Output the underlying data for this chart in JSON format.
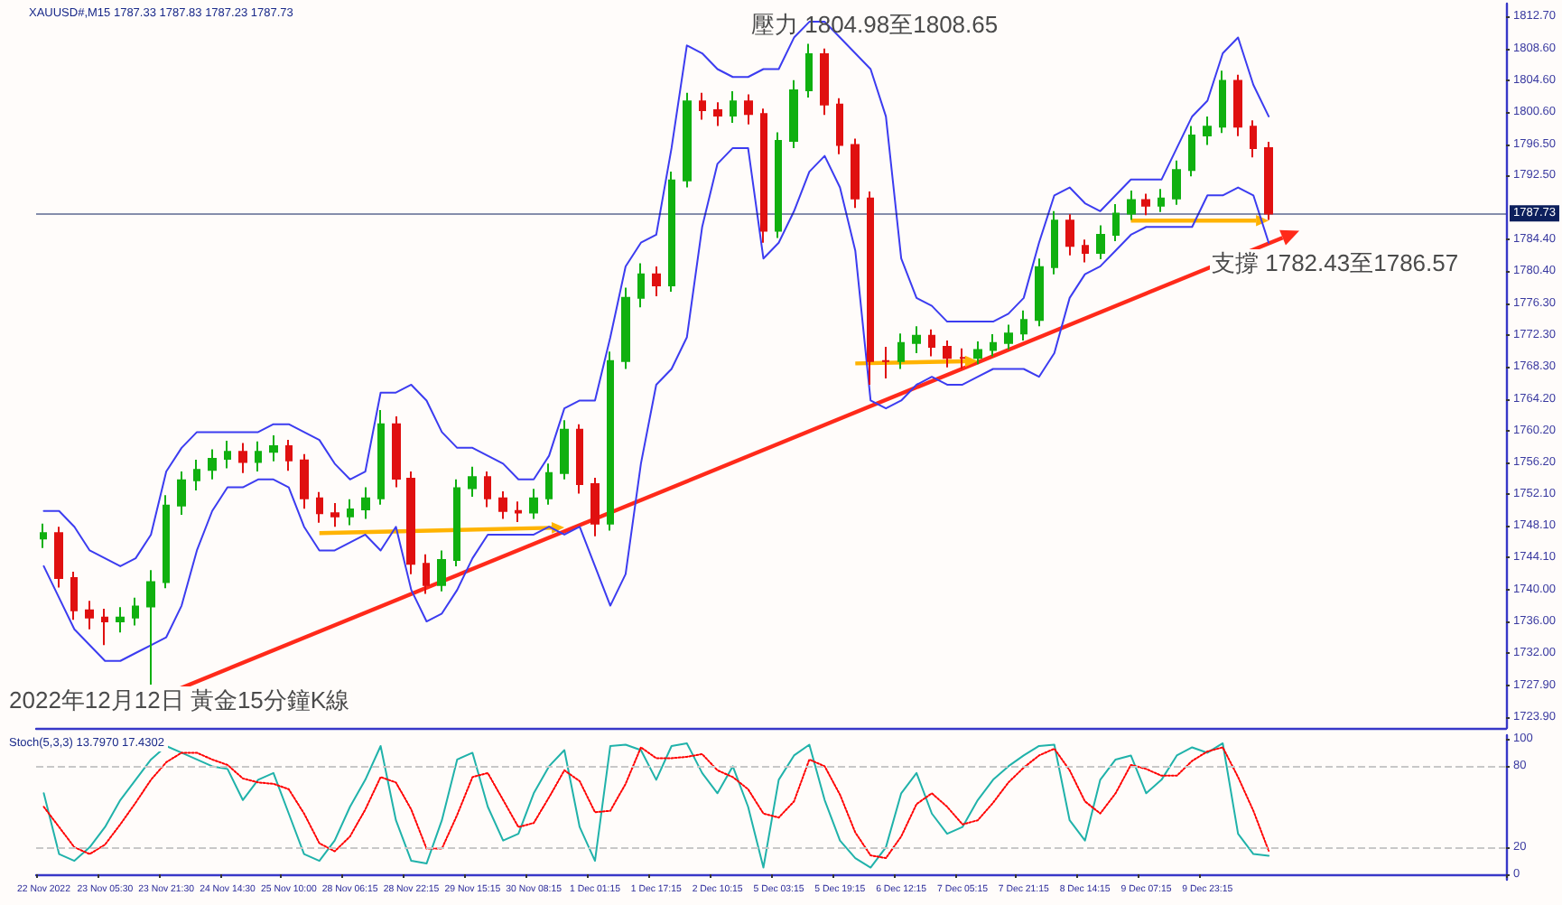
{
  "chart_data": [
    {
      "type": "candlestick",
      "title": "XAUUSD#,M15 1787.33 1787.83 1787.23 1787.73",
      "categories": [
        null,
        null,
        null,
        null,
        null,
        null,
        null,
        null,
        null,
        null,
        null,
        null,
        null,
        null,
        null,
        null,
        null,
        null,
        null,
        null,
        null,
        null,
        null,
        null,
        null,
        null,
        null,
        null,
        null,
        null,
        null,
        null,
        null,
        null,
        null,
        null,
        null,
        null,
        null,
        null,
        null,
        null,
        null,
        null,
        null,
        null,
        null,
        null,
        null,
        null,
        null,
        null,
        null,
        null,
        null,
        null,
        null,
        null,
        null,
        null,
        null,
        null,
        null,
        null,
        null,
        null,
        null,
        null,
        null,
        null,
        null,
        null,
        null,
        null,
        null,
        null,
        null,
        null,
        null,
        null,
        null,
        null,
        null,
        null,
        null,
        null,
        null,
        null,
        null,
        null,
        null,
        null,
        null,
        null,
        null,
        null
      ],
      "ohlc": [
        [
          1746.5,
          1748.4,
          1745.3,
          1747.2
        ],
        [
          1747.2,
          1748.0,
          1740.3,
          1741.5
        ],
        [
          1741.5,
          1742.3,
          1736.2,
          1737.4
        ],
        [
          1737.4,
          1738.6,
          1735.0,
          1736.5
        ],
        [
          1736.5,
          1737.6,
          1733.0,
          1736.0
        ],
        [
          1736.0,
          1737.8,
          1734.6,
          1736.5
        ],
        [
          1736.5,
          1739.0,
          1735.5,
          1737.9
        ],
        [
          1737.9,
          1742.5,
          1728.0,
          1741.0
        ],
        [
          1741.0,
          1752.0,
          1740.2,
          1750.7
        ],
        [
          1750.7,
          1755.0,
          1749.5,
          1753.9
        ],
        [
          1753.9,
          1756.5,
          1752.6,
          1755.2
        ],
        [
          1755.2,
          1757.8,
          1754.0,
          1756.6
        ],
        [
          1756.6,
          1758.9,
          1755.4,
          1757.5
        ],
        [
          1757.5,
          1758.6,
          1754.8,
          1756.2
        ],
        [
          1756.2,
          1758.8,
          1755.0,
          1757.5
        ],
        [
          1757.5,
          1759.6,
          1756.3,
          1758.2
        ],
        [
          1758.2,
          1759.0,
          1755.1,
          1756.4
        ],
        [
          1756.4,
          1757.2,
          1750.3,
          1751.6
        ],
        [
          1751.6,
          1752.4,
          1748.5,
          1749.7
        ],
        [
          1749.7,
          1751.0,
          1748.0,
          1749.3
        ],
        [
          1749.3,
          1751.5,
          1748.2,
          1750.2
        ],
        [
          1750.2,
          1753.0,
          1749.0,
          1751.6
        ],
        [
          1751.6,
          1762.8,
          1750.8,
          1761.0
        ],
        [
          1761.0,
          1762.0,
          1753.0,
          1754.1
        ],
        [
          1754.1,
          1755.0,
          1742.0,
          1743.3
        ],
        [
          1743.3,
          1744.5,
          1739.5,
          1740.6
        ],
        [
          1740.6,
          1745.0,
          1739.8,
          1743.8
        ],
        [
          1743.8,
          1754.0,
          1743.0,
          1752.9
        ],
        [
          1752.9,
          1755.6,
          1751.8,
          1754.3
        ],
        [
          1754.3,
          1755.0,
          1750.5,
          1751.6
        ],
        [
          1751.6,
          1752.5,
          1749.0,
          1750.0
        ],
        [
          1750.0,
          1751.2,
          1748.6,
          1749.8
        ],
        [
          1749.8,
          1752.8,
          1749.0,
          1751.6
        ],
        [
          1751.6,
          1756.0,
          1750.8,
          1754.8
        ],
        [
          1754.8,
          1761.5,
          1754.0,
          1760.3
        ],
        [
          1760.3,
          1761.0,
          1752.2,
          1753.4
        ],
        [
          1753.4,
          1754.2,
          1746.8,
          1748.4
        ],
        [
          1748.4,
          1770.2,
          1747.5,
          1769.0
        ],
        [
          1769.0,
          1778.3,
          1768.0,
          1777.0
        ],
        [
          1777.0,
          1781.4,
          1775.8,
          1780.0
        ],
        [
          1780.0,
          1781.0,
          1777.2,
          1778.6
        ],
        [
          1778.6,
          1793.0,
          1777.8,
          1791.9
        ],
        [
          1791.9,
          1803.0,
          1791.0,
          1801.9
        ],
        [
          1801.9,
          1803.0,
          1799.6,
          1800.8
        ],
        [
          1800.8,
          1801.8,
          1798.8,
          1800.1
        ],
        [
          1800.1,
          1803.2,
          1799.2,
          1801.9
        ],
        [
          1801.9,
          1802.8,
          1799.0,
          1800.3
        ],
        [
          1800.3,
          1801.0,
          1784.0,
          1785.5
        ],
        [
          1785.5,
          1798.0,
          1784.6,
          1796.9
        ],
        [
          1796.9,
          1804.6,
          1796.0,
          1803.3
        ],
        [
          1803.3,
          1809.2,
          1802.4,
          1807.9
        ],
        [
          1807.9,
          1808.6,
          1800.2,
          1801.5
        ],
        [
          1801.5,
          1802.3,
          1795.2,
          1796.4
        ],
        [
          1796.4,
          1797.2,
          1788.4,
          1789.6
        ],
        [
          1789.6,
          1790.5,
          1766.0,
          1769.0
        ],
        [
          1769.0,
          1770.8,
          1766.8,
          1769.0
        ],
        [
          1769.0,
          1772.5,
          1768.0,
          1771.3
        ],
        [
          1771.3,
          1773.4,
          1770.0,
          1772.2
        ],
        [
          1772.2,
          1773.0,
          1769.6,
          1770.8
        ],
        [
          1770.8,
          1771.6,
          1768.2,
          1769.4
        ],
        [
          1769.4,
          1770.6,
          1768.0,
          1769.4
        ],
        [
          1769.4,
          1771.5,
          1768.6,
          1770.4
        ],
        [
          1770.4,
          1772.4,
          1769.6,
          1771.3
        ],
        [
          1771.3,
          1773.6,
          1770.5,
          1772.5
        ],
        [
          1772.5,
          1775.4,
          1771.6,
          1774.2
        ],
        [
          1774.2,
          1782.0,
          1773.4,
          1780.9
        ],
        [
          1780.9,
          1788.0,
          1780.0,
          1786.8
        ],
        [
          1786.8,
          1787.6,
          1782.4,
          1783.6
        ],
        [
          1783.6,
          1784.4,
          1781.5,
          1782.7
        ],
        [
          1782.7,
          1786.2,
          1781.9,
          1785.0
        ],
        [
          1785.0,
          1788.9,
          1784.2,
          1787.7
        ],
        [
          1787.7,
          1790.6,
          1786.9,
          1789.4
        ],
        [
          1789.4,
          1790.2,
          1787.5,
          1788.7
        ],
        [
          1788.7,
          1790.8,
          1787.9,
          1789.6
        ],
        [
          1789.6,
          1794.4,
          1788.8,
          1793.2
        ],
        [
          1793.2,
          1798.8,
          1792.4,
          1797.6
        ],
        [
          1797.6,
          1800.0,
          1796.4,
          1798.7
        ],
        [
          1798.7,
          1805.8,
          1797.9,
          1804.5
        ],
        [
          1804.5,
          1805.3,
          1797.5,
          1798.7
        ],
        [
          1798.7,
          1799.5,
          1794.8,
          1796.0
        ],
        [
          1796.0,
          1796.8,
          1786.9,
          1787.7
        ],
        null,
        null,
        null,
        null,
        null,
        null,
        null,
        null,
        null,
        null,
        null,
        null,
        null,
        null,
        null
      ],
      "colors": [
        "#10b010",
        "#e01010",
        "#e01010",
        "#e01010",
        "#e01010",
        "#10b010",
        "#10b010",
        "#10b010",
        "#10b010",
        "#10b010",
        "#10b010",
        "#10b010",
        "#10b010",
        "#e01010",
        "#10b010",
        "#10b010",
        "#e01010",
        "#e01010",
        "#e01010",
        "#e01010",
        "#10b010",
        "#10b010",
        "#10b010",
        "#e01010",
        "#e01010",
        "#e01010",
        "#10b010",
        "#10b010",
        "#10b010",
        "#e01010",
        "#e01010",
        "#e01010",
        "#10b010",
        "#10b010",
        "#10b010",
        "#e01010",
        "#e01010",
        "#10b010",
        "#10b010",
        "#10b010",
        "#e01010",
        "#10b010",
        "#10b010",
        "#e01010",
        "#e01010",
        "#10b010",
        "#e01010",
        "#e01010",
        "#10b010",
        "#10b010",
        "#10b010",
        "#e01010",
        "#e01010",
        "#e01010",
        "#e01010",
        "#e01010",
        "#10b010",
        "#10b010",
        "#e01010",
        "#e01010",
        "#e01010",
        "#10b010",
        "#10b010",
        "#10b010",
        "#10b010",
        "#10b010",
        "#10b010",
        "#e01010",
        "#e01010",
        "#10b010",
        "#10b010",
        "#10b010",
        "#e01010",
        "#10b010",
        "#10b010",
        "#10b010",
        "#10b010",
        "#10b010",
        "#e01010",
        "#e01010",
        "#e01010",
        null,
        null,
        null,
        null,
        null,
        null,
        null,
        null,
        null,
        null,
        null,
        null,
        null,
        null,
        null
      ],
      "series": [
        {
          "type": "line",
          "color": "#3c3cf0",
          "values": [
            1750,
            1750,
            1748,
            1745,
            1744,
            1743,
            1744,
            1747,
            1755,
            1758,
            1760,
            1760,
            1760,
            1760,
            1760,
            1761,
            1761,
            1760,
            1759,
            1756,
            1754,
            1755,
            1765,
            1765,
            1766,
            1764,
            1760,
            1758,
            1758,
            1757,
            1756,
            1754,
            1754,
            1757,
            1763,
            1764,
            1764,
            1772,
            1781,
            1784,
            1785,
            1796,
            1809,
            1808,
            1806,
            1805,
            1805,
            1806,
            1806,
            1810,
            1812,
            1812,
            1810,
            1808,
            1806,
            1800,
            1782,
            1777,
            1776,
            1774,
            1774,
            1774,
            1774,
            1775,
            1777,
            1784,
            1790,
            1791,
            1789,
            1788,
            1790,
            1792,
            1792,
            1792,
            1796,
            1800,
            1802,
            1808,
            1810,
            1804,
            1800,
            null,
            null,
            null,
            null,
            null,
            null,
            null,
            null,
            null,
            null,
            null,
            null,
            null,
            null,
            null
          ]
        },
        {
          "type": "line",
          "color": "#3c3cf0",
          "values": [
            1743,
            1739,
            1735,
            1733,
            1731,
            1731,
            1732,
            1733,
            1734,
            1738,
            1745,
            1750,
            1753,
            1753,
            1754,
            1754,
            1753,
            1748,
            1745,
            1745,
            1746,
            1747,
            1745,
            1748,
            1740,
            1736,
            1737,
            1740,
            1744,
            1747,
            1747,
            1747,
            1747,
            1748,
            1747,
            1748,
            1743,
            1738,
            1742,
            1756,
            1766,
            1768,
            1772,
            1786,
            1794,
            1796,
            1796,
            1782,
            1784,
            1788,
            1793,
            1795,
            1791,
            1783,
            1764,
            1763,
            1764,
            1766,
            1767,
            1766,
            1766,
            1767,
            1768,
            1768,
            1768,
            1767,
            1770,
            1777,
            1780,
            1781,
            1783,
            1785,
            1786,
            1786,
            1786,
            1786,
            1790,
            1790,
            1791,
            1790,
            1784,
            null,
            null,
            null,
            null,
            null,
            null,
            null,
            null,
            null,
            null,
            null,
            null,
            null,
            null,
            null
          ]
        }
      ],
      "ylim": [
        1722.5,
        1814.3
      ],
      "yticks": [
        {
          "value": 1723.9,
          "label": "1723.90"
        },
        {
          "value": 1727.9,
          "label": "1727.90"
        },
        {
          "value": 1732.0,
          "label": "1732.00"
        },
        {
          "value": 1736.0,
          "label": "1736.00"
        },
        {
          "value": 1740.0,
          "label": "1740.00"
        },
        {
          "value": 1744.1,
          "label": "1744.10"
        },
        {
          "value": 1748.1,
          "label": "1748.10"
        },
        {
          "value": 1752.1,
          "label": "1752.10"
        },
        {
          "value": 1756.2,
          "label": "1756.20"
        },
        {
          "value": 1760.2,
          "label": "1760.20"
        },
        {
          "value": 1764.2,
          "label": "1764.20"
        },
        {
          "value": 1768.3,
          "label": "1768.30"
        },
        {
          "value": 1772.3,
          "label": "1772.30"
        },
        {
          "value": 1776.3,
          "label": "1776.30"
        },
        {
          "value": 1780.4,
          "label": "1780.40"
        },
        {
          "value": 1784.4,
          "label": "1784.40"
        },
        {
          "value": 1792.5,
          "label": "1792.50"
        },
        {
          "value": 1796.5,
          "label": "1796.50"
        },
        {
          "value": 1800.6,
          "label": "1800.60"
        },
        {
          "value": 1804.6,
          "label": "1804.60"
        },
        {
          "value": 1808.6,
          "label": "1808.60"
        },
        {
          "value": 1812.7,
          "label": "1812.70"
        }
      ],
      "ref_lines": [
        {
          "axis": "y",
          "value": 1787.73,
          "label": "1787.73",
          "color": "#0c1f5c"
        }
      ],
      "annotations": [
        "壓力 1804.98至1808.65",
        "支撐 1782.43至1786.57",
        "2022年12月12日 黃金15分鐘K線"
      ],
      "tick_labels": "y",
      "marker": "none"
    },
    {
      "type": "line",
      "title": "Stoch(5,3,3) 13.7970 17.4302",
      "categories": [
        "22 Nov 2022",
        null,
        null,
        null,
        "23 Nov 05:30",
        null,
        null,
        null,
        "23 Nov 21:30",
        null,
        null,
        null,
        "24 Nov 14:30",
        null,
        null,
        null,
        "25 Nov 10:00",
        null,
        null,
        null,
        "28 Nov 06:15",
        null,
        null,
        null,
        "28 Nov 22:15",
        null,
        null,
        null,
        "29 Nov 15:15",
        null,
        null,
        null,
        "30 Nov 08:15",
        null,
        null,
        null,
        "1 Dec 01:15",
        null,
        null,
        null,
        "1 Dec 17:15",
        null,
        null,
        null,
        "2 Dec 10:15",
        null,
        null,
        null,
        "5 Dec 03:15",
        null,
        null,
        null,
        "5 Dec 19:15",
        null,
        null,
        null,
        "6 Dec 12:15",
        null,
        null,
        null,
        "7 Dec 05:15",
        null,
        null,
        null,
        "7 Dec 21:15",
        null,
        null,
        null,
        "8 Dec 14:15",
        null,
        null,
        null,
        "9 Dec 07:15",
        null,
        null,
        null,
        "9 Dec 23:15",
        null,
        null,
        null,
        null,
        null,
        null,
        null,
        null,
        null,
        null,
        null,
        null,
        null,
        null,
        null,
        null,
        null,
        null,
        null
      ],
      "series": [
        {
          "color": "#20b2aa",
          "values": [
            60,
            15,
            10,
            20,
            35,
            55,
            70,
            85,
            95,
            90,
            85,
            80,
            78,
            55,
            70,
            75,
            45,
            15,
            10,
            25,
            50,
            70,
            95,
            40,
            10,
            8,
            40,
            85,
            90,
            50,
            25,
            30,
            60,
            80,
            92,
            35,
            10,
            95,
            96,
            92,
            70,
            95,
            97,
            75,
            60,
            80,
            50,
            5,
            70,
            88,
            96,
            55,
            25,
            12,
            5,
            20,
            60,
            75,
            45,
            30,
            35,
            55,
            70,
            80,
            88,
            95,
            96,
            40,
            25,
            70,
            85,
            88,
            60,
            70,
            88,
            94,
            90,
            97,
            30,
            15,
            13.8,
            null,
            null,
            null,
            null,
            null,
            null,
            null,
            null,
            null,
            null,
            null,
            null,
            null,
            null,
            null
          ]
        },
        {
          "color": "#ff0000",
          "line_style": "dotted",
          "values": [
            50,
            35,
            20,
            15,
            22,
            37,
            53,
            70,
            83,
            90,
            90,
            85,
            81,
            71,
            68,
            67,
            63,
            45,
            23,
            17,
            28,
            48,
            72,
            68,
            48,
            19,
            19,
            44,
            72,
            75,
            55,
            35,
            38,
            57,
            77,
            69,
            46,
            47,
            67,
            94,
            86,
            86,
            87,
            89,
            77,
            72,
            63,
            45,
            42,
            54,
            85,
            80,
            59,
            31,
            14,
            12,
            28,
            52,
            60,
            50,
            37,
            40,
            53,
            68,
            79,
            88,
            93,
            77,
            54,
            45,
            60,
            81,
            78,
            73,
            73,
            84,
            91,
            94,
            72,
            47,
            17.4,
            null,
            null,
            null,
            null,
            null,
            null,
            null,
            null,
            null,
            null,
            null,
            null,
            null,
            null,
            null
          ]
        }
      ],
      "ylim": [
        -4,
        103
      ],
      "yticks": [
        0,
        20,
        80,
        100
      ],
      "ref_lines": [
        {
          "axis": "y",
          "value": 20,
          "color": "#c8c8c8",
          "line_style": "dashed"
        },
        {
          "axis": "y",
          "value": 80,
          "color": "#c8c8c8",
          "line_style": "dashed"
        }
      ],
      "marker": "none"
    }
  ]
}
